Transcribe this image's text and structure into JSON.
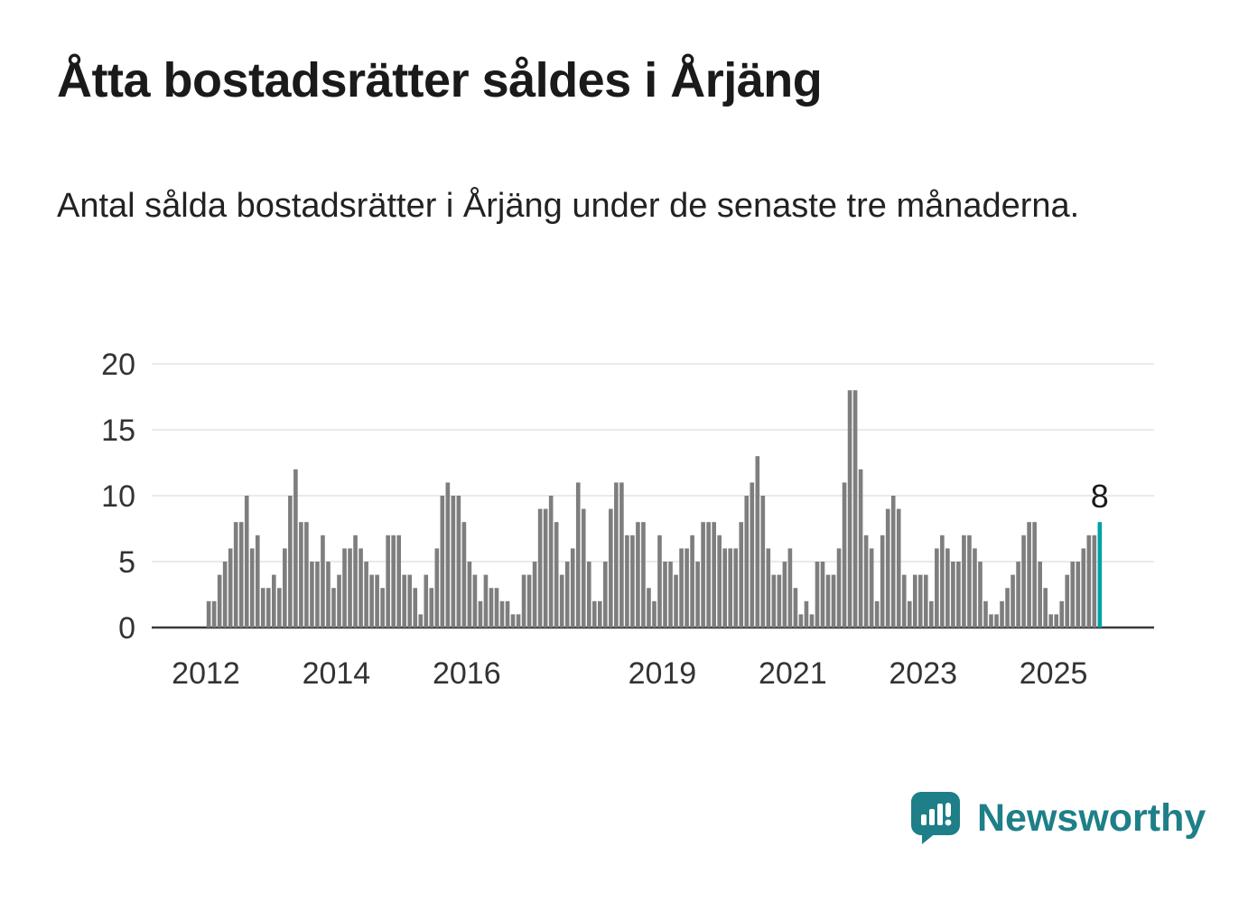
{
  "title": "Åtta bostadsrätter såldes i Årjäng",
  "subtitle": "Antal sålda bostadsrätter i Årjäng under de senaste tre månaderna.",
  "branding": {
    "name": "Newsworthy",
    "color": "#1e7f88"
  },
  "chart_data": {
    "type": "bar",
    "title": "Åtta bostadsrätter såldes i Årjäng",
    "subtitle": "Antal sålda bostadsrätter i Årjäng under de senaste tre månaderna.",
    "x_start": "2012-01",
    "x_end": "2025-09",
    "x_frequency": "monthly",
    "values": [
      2,
      2,
      4,
      5,
      6,
      8,
      8,
      10,
      6,
      7,
      3,
      3,
      4,
      3,
      6,
      10,
      12,
      8,
      8,
      5,
      5,
      7,
      5,
      3,
      4,
      6,
      6,
      7,
      6,
      5,
      4,
      4,
      3,
      7,
      7,
      7,
      4,
      4,
      3,
      1,
      4,
      3,
      6,
      10,
      11,
      10,
      10,
      8,
      5,
      4,
      2,
      4,
      3,
      3,
      2,
      2,
      1,
      1,
      4,
      4,
      5,
      9,
      9,
      10,
      8,
      4,
      5,
      6,
      11,
      9,
      5,
      2,
      2,
      5,
      9,
      11,
      11,
      7,
      7,
      8,
      8,
      3,
      2,
      7,
      5,
      5,
      4,
      6,
      6,
      7,
      5,
      8,
      8,
      8,
      7,
      6,
      6,
      6,
      8,
      10,
      11,
      13,
      10,
      6,
      4,
      4,
      5,
      6,
      3,
      1,
      2,
      1,
      5,
      5,
      4,
      4,
      6,
      11,
      18,
      18,
      12,
      7,
      6,
      2,
      7,
      9,
      10,
      9,
      4,
      2,
      4,
      4,
      4,
      2,
      6,
      7,
      6,
      5,
      5,
      7,
      7,
      6,
      5,
      2,
      1,
      1,
      2,
      3,
      4,
      5,
      7,
      8,
      8,
      5,
      3,
      1,
      1,
      2,
      4,
      5,
      5,
      6,
      7,
      7,
      8
    ],
    "yticks": [
      0,
      5,
      10,
      15,
      20
    ],
    "ylim": [
      0,
      20
    ],
    "xticks": [
      2012,
      2014,
      2016,
      2019,
      2021,
      2023,
      2025
    ],
    "grid": true,
    "legend": "none",
    "bar_color": "#7e7e7e",
    "grid_color": "#e3e3e3",
    "axis_color": "#3a3a3a",
    "tick_label_color": "#333333",
    "highlight": {
      "position": "last",
      "value": 8,
      "label": "8",
      "color": "#00a1a7"
    }
  }
}
